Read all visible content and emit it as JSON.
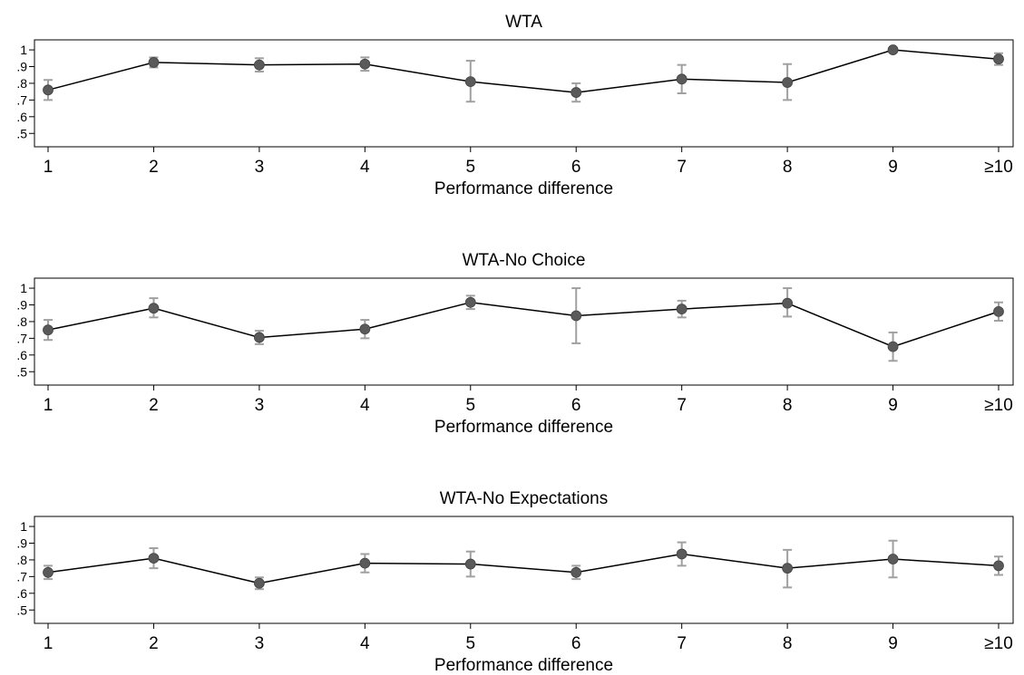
{
  "colors": {
    "line": "#000000",
    "marker": "#5a5a5a",
    "errorbar": "#a0a0a0",
    "background": "#ffffff"
  },
  "chart_data": [
    {
      "type": "line",
      "title": "WTA",
      "xlabel": "Performance difference",
      "ylabel": "",
      "categories": [
        "1",
        "2",
        "3",
        "4",
        "5",
        "6",
        "7",
        "8",
        "9",
        "≥10"
      ],
      "y_ticks": [
        ".5",
        ".6",
        ".7",
        ".8",
        ".9",
        "1"
      ],
      "ylim": [
        0.42,
        1.06
      ],
      "grid": false,
      "series": [
        {
          "values": [
            0.76,
            0.925,
            0.91,
            0.915,
            0.81,
            0.745,
            0.825,
            0.805,
            1.0,
            0.945
          ],
          "lower": [
            0.7,
            0.895,
            0.87,
            0.875,
            0.69,
            0.69,
            0.74,
            0.7,
            1.0,
            0.91
          ],
          "upper": [
            0.82,
            0.955,
            0.95,
            0.955,
            0.935,
            0.8,
            0.91,
            0.915,
            1.0,
            0.98
          ]
        }
      ]
    },
    {
      "type": "line",
      "title": "WTA-No Choice",
      "xlabel": "Performance difference",
      "ylabel": "",
      "categories": [
        "1",
        "2",
        "3",
        "4",
        "5",
        "6",
        "7",
        "8",
        "9",
        "≥10"
      ],
      "y_ticks": [
        ".5",
        ".6",
        ".7",
        ".8",
        ".9",
        "1"
      ],
      "ylim": [
        0.42,
        1.06
      ],
      "grid": false,
      "series": [
        {
          "values": [
            0.75,
            0.88,
            0.705,
            0.755,
            0.915,
            0.835,
            0.875,
            0.91,
            0.65,
            0.86
          ],
          "lower": [
            0.69,
            0.825,
            0.665,
            0.7,
            0.875,
            0.67,
            0.825,
            0.83,
            0.565,
            0.805
          ],
          "upper": [
            0.81,
            0.94,
            0.745,
            0.81,
            0.955,
            1.0,
            0.925,
            1.0,
            0.735,
            0.915
          ]
        }
      ]
    },
    {
      "type": "line",
      "title": "WTA-No Expectations",
      "xlabel": "Performance difference",
      "ylabel": "",
      "categories": [
        "1",
        "2",
        "3",
        "4",
        "5",
        "6",
        "7",
        "8",
        "9",
        "≥10"
      ],
      "y_ticks": [
        ".5",
        ".6",
        ".7",
        ".8",
        ".9",
        "1"
      ],
      "ylim": [
        0.42,
        1.06
      ],
      "grid": false,
      "series": [
        {
          "values": [
            0.725,
            0.81,
            0.66,
            0.78,
            0.775,
            0.725,
            0.835,
            0.75,
            0.805,
            0.765
          ],
          "lower": [
            0.685,
            0.75,
            0.625,
            0.725,
            0.7,
            0.685,
            0.765,
            0.635,
            0.695,
            0.71
          ],
          "upper": [
            0.765,
            0.87,
            0.695,
            0.835,
            0.85,
            0.765,
            0.905,
            0.86,
            0.915,
            0.82
          ]
        }
      ]
    }
  ]
}
